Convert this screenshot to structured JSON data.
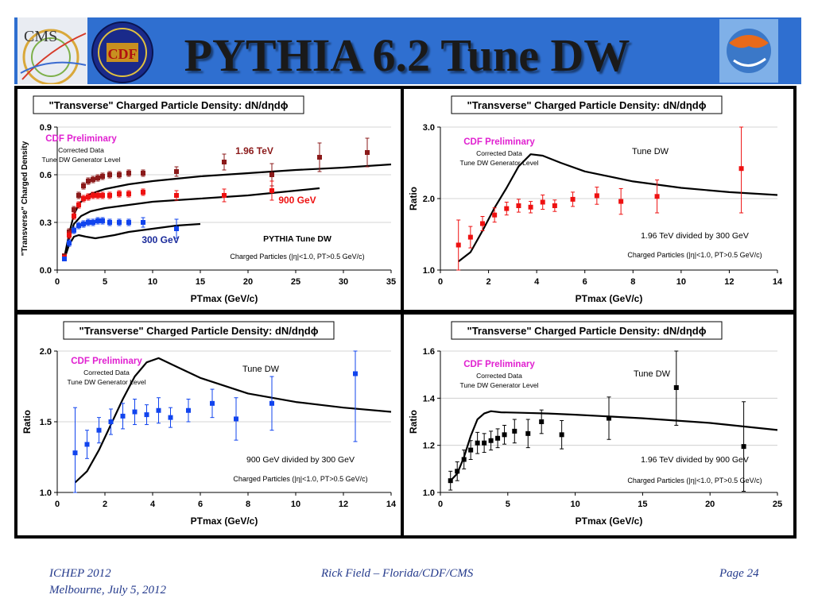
{
  "page": {
    "title": "PYTHIA 6.2 Tune DW",
    "footer": {
      "left_line1": "ICHEP 2012",
      "left_line2": "Melbourne, July 5, 2012",
      "center": "Rick Field – Florida/CDF/CMS",
      "right": "Page 24"
    },
    "logos": {
      "left1": "CMS",
      "left2": "CDF"
    },
    "colors": {
      "header": "#2f6fd0",
      "frame": "#000000",
      "magenta": "#e020d0",
      "dark_red": "#8b1a1a",
      "red": "#ee1111",
      "blue": "#1144ee",
      "navy": "#1a2a9a",
      "black": "#000000"
    }
  },
  "chart_data": [
    {
      "type": "scatter",
      "title": "\"Transverse\" Charged Particle Density: dN/dηdϕ",
      "xlabel": "PTmax  (GeV/c)",
      "ylabel": "\"Transverse\" Charged Density",
      "xlim": [
        0,
        35
      ],
      "ylim": [
        0,
        0.9
      ],
      "xticks": [
        0,
        5,
        10,
        15,
        20,
        25,
        30,
        35
      ],
      "yticks": [
        0.0,
        0.3,
        0.6,
        0.9
      ],
      "ytick_labels": [
        "0.0",
        "0.3",
        "0.6",
        "0.9"
      ],
      "grid": true,
      "annotations": [
        "CDF Preliminary",
        "Corrected Data",
        "Tune DW Generator Level",
        "PYTHIA Tune DW",
        "Charged Particles (|η|<1.0, PT>0.5 GeV/c)"
      ],
      "series": [
        {
          "name": "1.96 TeV",
          "color": "#8b1a1a",
          "x": [
            0.75,
            1.25,
            1.75,
            2.25,
            2.75,
            3.25,
            3.75,
            4.25,
            4.75,
            5.5,
            6.5,
            7.5,
            9.0,
            12.5,
            17.5,
            22.5,
            27.5,
            32.5
          ],
          "y": [
            0.09,
            0.24,
            0.38,
            0.47,
            0.53,
            0.56,
            0.57,
            0.58,
            0.59,
            0.6,
            0.6,
            0.61,
            0.61,
            0.62,
            0.68,
            0.6,
            0.71,
            0.74
          ],
          "err": [
            0.01,
            0.02,
            0.02,
            0.02,
            0.02,
            0.02,
            0.02,
            0.02,
            0.02,
            0.02,
            0.02,
            0.02,
            0.02,
            0.03,
            0.05,
            0.07,
            0.09,
            0.09
          ]
        },
        {
          "name": "900 GeV",
          "color": "#ee1111",
          "x": [
            0.75,
            1.25,
            1.75,
            2.25,
            2.75,
            3.25,
            3.75,
            4.25,
            4.75,
            5.5,
            6.5,
            7.5,
            9.0,
            12.5,
            17.5,
            22.5
          ],
          "y": [
            0.08,
            0.22,
            0.34,
            0.41,
            0.45,
            0.46,
            0.47,
            0.47,
            0.47,
            0.47,
            0.48,
            0.48,
            0.49,
            0.47,
            0.47,
            0.5
          ],
          "err": [
            0.01,
            0.02,
            0.02,
            0.02,
            0.02,
            0.02,
            0.02,
            0.02,
            0.02,
            0.02,
            0.02,
            0.02,
            0.02,
            0.03,
            0.04,
            0.06
          ]
        },
        {
          "name": "300 GeV",
          "color": "#1144ee",
          "x": [
            0.75,
            1.25,
            1.75,
            2.25,
            2.75,
            3.25,
            3.75,
            4.25,
            4.75,
            5.5,
            6.5,
            7.5,
            9.0,
            12.5
          ],
          "y": [
            0.07,
            0.17,
            0.25,
            0.28,
            0.29,
            0.3,
            0.3,
            0.31,
            0.31,
            0.3,
            0.3,
            0.3,
            0.3,
            0.26
          ],
          "err": [
            0.01,
            0.02,
            0.02,
            0.02,
            0.02,
            0.02,
            0.02,
            0.02,
            0.02,
            0.02,
            0.02,
            0.02,
            0.03,
            0.06
          ]
        }
      ],
      "curves": [
        {
          "x": [
            0.75,
            1.25,
            1.75,
            2.25,
            2.75,
            3.5,
            5,
            7.5,
            10,
            15,
            20,
            25,
            30,
            35
          ],
          "y": [
            0.08,
            0.23,
            0.35,
            0.41,
            0.45,
            0.48,
            0.51,
            0.54,
            0.56,
            0.59,
            0.61,
            0.63,
            0.645,
            0.665
          ]
        },
        {
          "x": [
            0.75,
            1.25,
            1.75,
            2.5,
            3.5,
            5,
            7.5,
            10,
            15,
            20,
            25,
            27.5
          ],
          "y": [
            0.08,
            0.2,
            0.29,
            0.34,
            0.37,
            0.39,
            0.41,
            0.43,
            0.45,
            0.47,
            0.5,
            0.515
          ]
        },
        {
          "x": [
            0.75,
            1.25,
            1.75,
            2.25,
            3.0,
            4.0,
            5.0,
            6.0,
            7.5,
            10,
            12.5,
            15
          ],
          "y": [
            0.07,
            0.16,
            0.21,
            0.22,
            0.21,
            0.2,
            0.21,
            0.22,
            0.24,
            0.26,
            0.28,
            0.29
          ]
        }
      ]
    },
    {
      "type": "scatter",
      "title": "\"Transverse\" Charged Particle Density: dN/dηdϕ",
      "xlabel": "PTmax  (GeV/c)",
      "ylabel": "Ratio",
      "xlim": [
        0,
        14
      ],
      "ylim": [
        1.0,
        3.0
      ],
      "xticks": [
        0,
        2,
        4,
        6,
        8,
        10,
        12,
        14
      ],
      "yticks": [
        1.0,
        2.0,
        3.0
      ],
      "ytick_labels": [
        "1.0",
        "2.0",
        "3.0"
      ],
      "grid": true,
      "annotations": [
        "CDF Preliminary",
        "Corrected Data",
        "Tune DW Generator Level",
        "Tune DW",
        "1.96 TeV divided by 300 GeV",
        "Charged Particles (|η|<1.0, PT>0.5 GeV/c)"
      ],
      "series": [
        {
          "name": "",
          "color": "#ee1111",
          "x": [
            0.75,
            1.25,
            1.75,
            2.25,
            2.75,
            3.25,
            3.75,
            4.25,
            4.75,
            5.5,
            6.5,
            7.5,
            9.0,
            12.5
          ],
          "y": [
            1.35,
            1.46,
            1.65,
            1.77,
            1.86,
            1.9,
            1.88,
            1.95,
            1.9,
            1.99,
            2.04,
            1.96,
            2.03,
            2.42
          ],
          "err": [
            0.35,
            0.15,
            0.1,
            0.1,
            0.09,
            0.09,
            0.08,
            0.1,
            0.08,
            0.1,
            0.12,
            0.18,
            0.23,
            0.62
          ]
        }
      ],
      "curves": [
        {
          "x": [
            0.75,
            1.25,
            1.75,
            2.25,
            2.75,
            3.25,
            3.75,
            4.25,
            5,
            6,
            8,
            10,
            12,
            14
          ],
          "y": [
            1.12,
            1.25,
            1.55,
            1.87,
            2.15,
            2.45,
            2.62,
            2.6,
            2.5,
            2.38,
            2.24,
            2.15,
            2.09,
            2.05
          ]
        }
      ]
    },
    {
      "type": "scatter",
      "title": "\"Transverse\" Charged Particle Density: dN/dηdϕ",
      "xlabel": "PTmax  (GeV/c)",
      "ylabel": "Ratio",
      "xlim": [
        0,
        14
      ],
      "ylim": [
        1.0,
        2.0
      ],
      "xticks": [
        0,
        2,
        4,
        6,
        8,
        10,
        12,
        14
      ],
      "yticks": [
        1.0,
        1.5,
        2.0
      ],
      "ytick_labels": [
        "1.0",
        "1.5",
        "2.0"
      ],
      "grid": true,
      "annotations": [
        "CDF Preliminary",
        "Corrected Data",
        "Tune DW Generator Level",
        "Tune DW",
        "900 GeV divided by 300 GeV",
        "Charged Particles (|η|<1.0, PT>0.5 GeV/c)"
      ],
      "series": [
        {
          "name": "",
          "color": "#1144ee",
          "x": [
            0.75,
            1.25,
            1.75,
            2.25,
            2.75,
            3.25,
            3.75,
            4.25,
            4.75,
            5.5,
            6.5,
            7.5,
            9.0,
            12.5
          ],
          "y": [
            1.28,
            1.34,
            1.44,
            1.5,
            1.54,
            1.57,
            1.55,
            1.58,
            1.53,
            1.58,
            1.63,
            1.52,
            1.63,
            1.84
          ],
          "err": [
            0.32,
            0.1,
            0.09,
            0.09,
            0.09,
            0.09,
            0.07,
            0.09,
            0.07,
            0.08,
            0.1,
            0.15,
            0.19,
            0.48
          ]
        }
      ],
      "curves": [
        {
          "x": [
            0.75,
            1.25,
            1.75,
            2.25,
            2.75,
            3.25,
            3.75,
            4.25,
            5,
            6,
            8,
            10,
            12,
            14
          ],
          "y": [
            1.07,
            1.15,
            1.3,
            1.48,
            1.66,
            1.82,
            1.92,
            1.95,
            1.89,
            1.81,
            1.7,
            1.64,
            1.6,
            1.57
          ]
        }
      ]
    },
    {
      "type": "scatter",
      "title": "\"Transverse\" Charged Particle Density: dN/dηdϕ",
      "xlabel": "PTmax  (GeV/c)",
      "ylabel": "Ratio",
      "xlim": [
        0,
        25
      ],
      "ylim": [
        1.0,
        1.6
      ],
      "xticks": [
        0,
        5,
        10,
        15,
        20,
        25
      ],
      "yticks": [
        1.0,
        1.2,
        1.4,
        1.6
      ],
      "ytick_labels": [
        "1.0",
        "1.2",
        "1.4",
        "1.6"
      ],
      "grid": true,
      "annotations": [
        "CDF Preliminary",
        "Corrected Data",
        "Tune DW Generator Level",
        "Tune DW",
        "1.96 TeV divided by 900 GeV",
        "Charged Particles (|η|<1.0, PT>0.5 GeV/c)"
      ],
      "series": [
        {
          "name": "",
          "color": "#000000",
          "x": [
            0.75,
            1.25,
            1.75,
            2.25,
            2.75,
            3.25,
            3.75,
            4.25,
            4.75,
            5.5,
            6.5,
            7.5,
            9.0,
            12.5,
            17.5,
            22.5
          ],
          "y": [
            1.05,
            1.09,
            1.14,
            1.18,
            1.21,
            1.21,
            1.22,
            1.23,
            1.245,
            1.26,
            1.25,
            1.3,
            1.245,
            1.315,
            1.445,
            1.195
          ],
          "err": [
            0.04,
            0.04,
            0.04,
            0.04,
            0.045,
            0.04,
            0.04,
            0.04,
            0.04,
            0.05,
            0.06,
            0.05,
            0.06,
            0.09,
            0.16,
            0.19
          ]
        }
      ],
      "curves": [
        {
          "x": [
            0.75,
            1.25,
            1.75,
            2.25,
            2.75,
            3.25,
            3.75,
            4.5,
            6,
            8,
            10,
            15,
            20,
            25
          ],
          "y": [
            1.05,
            1.08,
            1.15,
            1.24,
            1.31,
            1.335,
            1.345,
            1.34,
            1.338,
            1.335,
            1.33,
            1.315,
            1.295,
            1.265
          ]
        }
      ]
    }
  ]
}
